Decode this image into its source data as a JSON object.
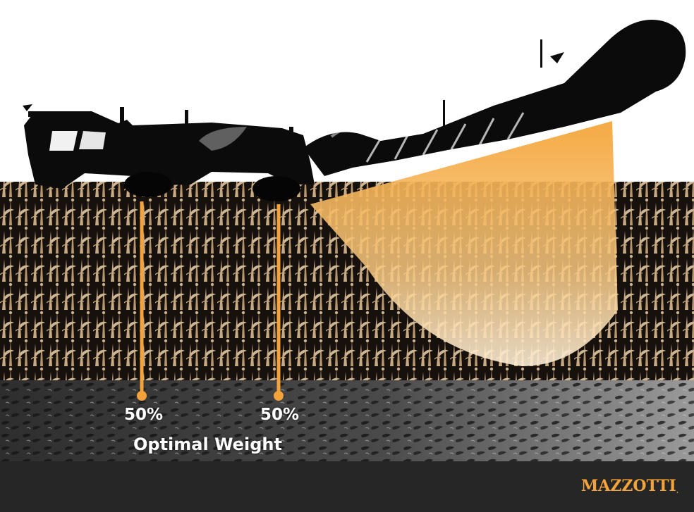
{
  "weight_distribution": {
    "left_share": "50%",
    "right_share": "50%",
    "caption": "Optimal Weight"
  },
  "brand": {
    "name": "MAZZOTTI",
    "mark": "."
  },
  "colors": {
    "accent": "#f4a23a",
    "footer": "#262626",
    "crop_highlight": "#f7d6ac",
    "soil": "#3a3a3a",
    "text": "#ffffff"
  },
  "icons": {
    "left_marker": "marker-pin-icon",
    "right_marker": "marker-pin-icon"
  }
}
